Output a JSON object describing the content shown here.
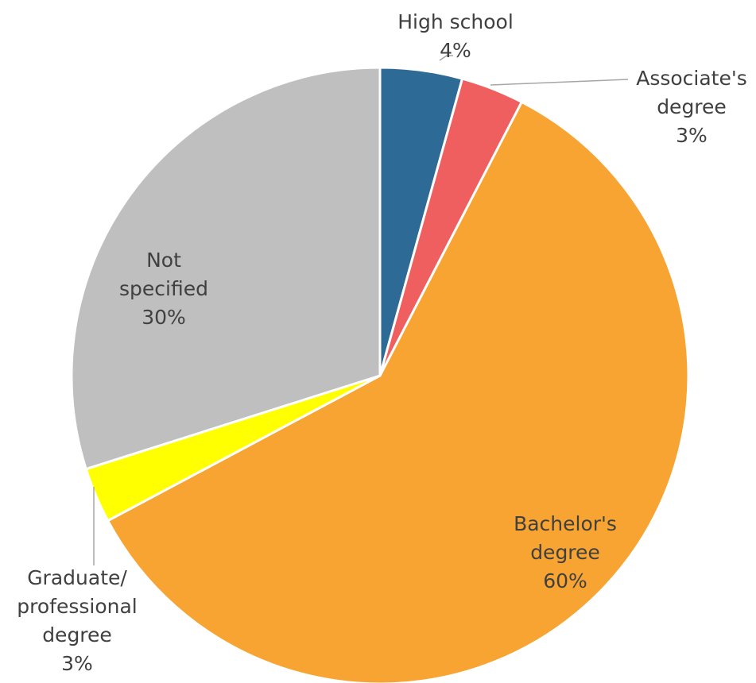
{
  "chart_data": {
    "type": "pie",
    "slices": [
      {
        "label": [
          "High school"
        ],
        "pct_label": "4%",
        "value": 4.3,
        "color": "#2e6a96"
      },
      {
        "label": [
          "Associate's",
          "degree"
        ],
        "pct_label": "3%",
        "value": 3.3,
        "color": "#f05f5f"
      },
      {
        "label": [
          "Bachelor's",
          "degree"
        ],
        "pct_label": "60%",
        "value": 59.6,
        "color": "#f8a432"
      },
      {
        "label": [
          "Graduate/",
          "professional",
          "degree"
        ],
        "pct_label": "3%",
        "value": 2.9,
        "color": "#ffff00"
      },
      {
        "label": [
          "Not",
          "specified"
        ],
        "pct_label": "30%",
        "value": 29.9,
        "color": "#bfbfbf"
      }
    ],
    "start_angle": "12 o'clock",
    "direction": "clockwise",
    "legend": "none"
  }
}
